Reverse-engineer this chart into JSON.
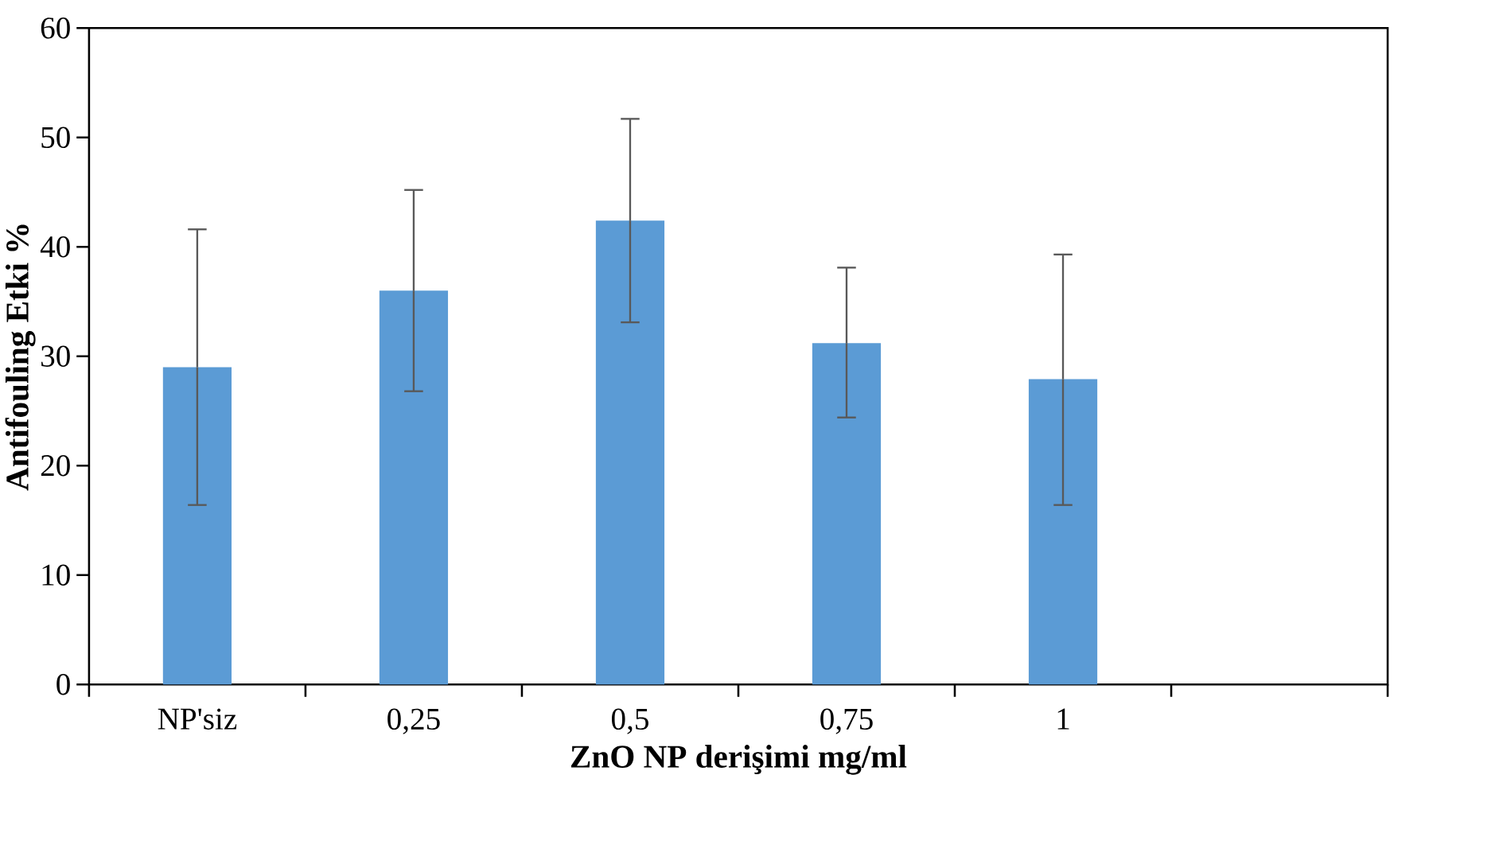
{
  "chart_data": {
    "type": "bar",
    "xlabel": "ZnO NP derişimi mg/ml",
    "ylabel": "Antifouling Etki %",
    "categories": [
      "NP'siz",
      "0,25",
      "0,5",
      "0,75",
      "1",
      null
    ],
    "values": [
      29.0,
      36.0,
      42.4,
      31.2,
      27.9,
      null
    ],
    "errors": [
      [
        16.4,
        41.6
      ],
      [
        26.8,
        45.2
      ],
      [
        33.1,
        51.7
      ],
      [
        24.4,
        38.1
      ],
      [
        16.4,
        39.3
      ],
      null
    ],
    "color": "#5b9bd5",
    "ylim": [
      0,
      60
    ],
    "yticks": [
      0,
      10,
      20,
      30,
      40,
      50,
      60
    ],
    "grid": false,
    "legend": false
  }
}
